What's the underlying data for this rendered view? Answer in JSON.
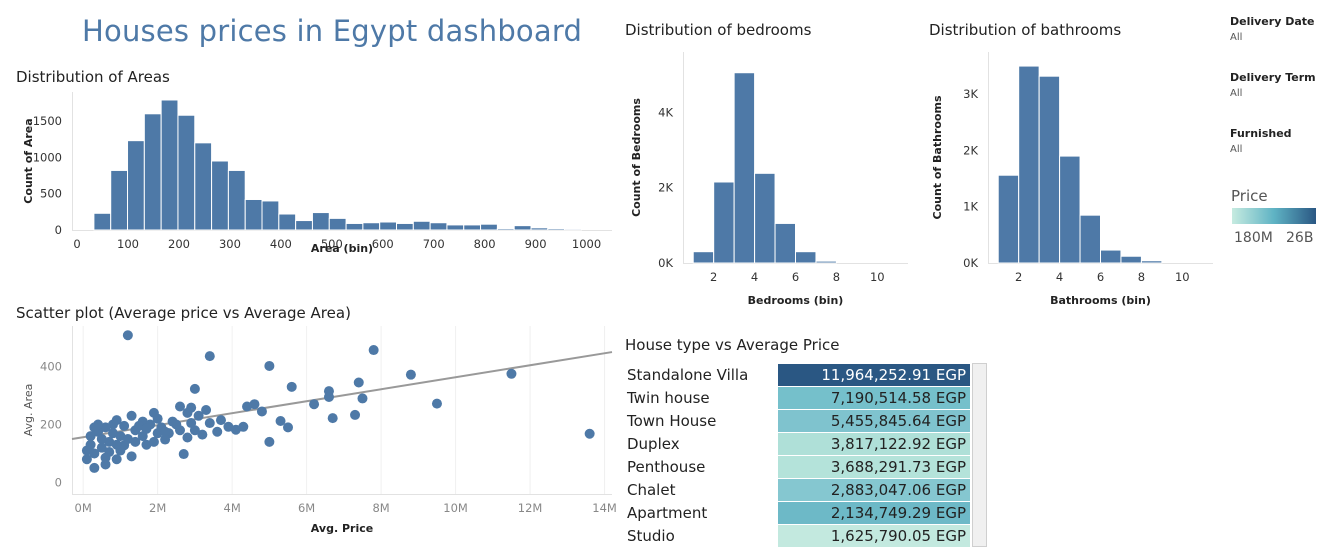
{
  "dashboard": {
    "title": "Houses prices in Egypt dashboard"
  },
  "filters": [
    {
      "label": "Delivery Date",
      "value": "All"
    },
    {
      "label": "Delivery Term",
      "value": "All"
    },
    {
      "label": "Furnished",
      "value": "All"
    }
  ],
  "legend": {
    "title": "Price",
    "min_label": "180M",
    "max_label": "26B",
    "color_low": "#c6ebe0",
    "color_high": "#2a5783"
  },
  "colors": {
    "bar": "#4e79a7",
    "point": "#4e79a7",
    "trend": "#999999"
  },
  "chart_data": [
    {
      "id": "areas",
      "type": "bar",
      "title": "Distribution of Areas",
      "xlabel": "Area (bin)",
      "ylabel": "Count of Area",
      "bin_width": 33,
      "x": [
        33,
        66,
        99,
        132,
        165,
        198,
        231,
        264,
        297,
        330,
        363,
        396,
        429,
        462,
        495,
        528,
        561,
        594,
        627,
        660,
        693,
        726,
        759,
        792,
        825,
        858,
        891,
        924,
        957
      ],
      "values": [
        230,
        820,
        1230,
        1600,
        1790,
        1580,
        1200,
        950,
        820,
        420,
        400,
        220,
        130,
        240,
        160,
        90,
        100,
        110,
        90,
        120,
        100,
        70,
        70,
        80,
        20,
        60,
        30,
        20,
        15
      ],
      "xticks": [
        "0",
        "100",
        "200",
        "300",
        "400",
        "500",
        "600",
        "700",
        "800",
        "900",
        "1000"
      ],
      "xtick_values": [
        0,
        100,
        200,
        300,
        400,
        500,
        600,
        700,
        800,
        900,
        1000
      ],
      "yticks": [
        "0",
        "500",
        "1000",
        "1500"
      ],
      "ytick_values": [
        0,
        500,
        1000,
        1500
      ],
      "xlim": [
        -10,
        1050
      ],
      "ylim": [
        0,
        1900
      ]
    },
    {
      "id": "bedrooms",
      "type": "bar",
      "title": "Distribution of bedrooms",
      "xlabel": "Bedrooms (bin)",
      "ylabel": "Count of Bedrooms",
      "bin_width": 1,
      "x": [
        1,
        2,
        3,
        4,
        5,
        6,
        7
      ],
      "values": [
        300,
        2150,
        5050,
        2380,
        1050,
        300,
        50
      ],
      "xticks": [
        "2",
        "4",
        "6",
        "8",
        "10"
      ],
      "xtick_values": [
        2,
        4,
        6,
        8,
        10
      ],
      "yticks": [
        "0K",
        "2K",
        "4K"
      ],
      "ytick_values": [
        0,
        2000,
        4000
      ],
      "xlim": [
        0.5,
        11.5
      ],
      "ylim": [
        0,
        5600
      ]
    },
    {
      "id": "bathrooms",
      "type": "bar",
      "title": "Distribution of bathrooms",
      "xlabel": "Bathrooms (bin)",
      "ylabel": "Count of Bathrooms",
      "bin_width": 1,
      "x": [
        1,
        2,
        3,
        4,
        5,
        6,
        7,
        8
      ],
      "values": [
        1560,
        3500,
        3320,
        1900,
        850,
        230,
        120,
        40
      ],
      "xticks": [
        "2",
        "4",
        "6",
        "8",
        "10"
      ],
      "xtick_values": [
        2,
        4,
        6,
        8,
        10
      ],
      "yticks": [
        "0K",
        "1K",
        "2K",
        "3K"
      ],
      "ytick_values": [
        0,
        1000,
        2000,
        3000
      ],
      "xlim": [
        0.5,
        11.5
      ],
      "ylim": [
        0,
        3750
      ]
    },
    {
      "id": "scatter",
      "type": "scatter",
      "title": "Scatter plot (Average price vs Average Area)",
      "xlabel": "Avg. Price",
      "ylabel": "Avg. Area",
      "xticks": [
        "0M",
        "2M",
        "4M",
        "6M",
        "8M",
        "10M",
        "12M",
        "14M"
      ],
      "xtick_values": [
        0,
        2,
        4,
        6,
        8,
        10,
        12,
        14
      ],
      "yticks": [
        "0",
        "200",
        "400"
      ],
      "ytick_values": [
        0,
        200,
        400
      ],
      "xlim": [
        -0.3,
        14.2
      ],
      "ylim": [
        -40,
        540
      ],
      "trend": [
        [
          -0.3,
          150
        ],
        [
          14.2,
          450
        ]
      ],
      "points": [
        [
          1.2,
          508
        ],
        [
          3.4,
          436
        ],
        [
          7.8,
          457
        ],
        [
          5.0,
          402
        ],
        [
          8.8,
          372
        ],
        [
          11.5,
          375
        ],
        [
          13.6,
          168
        ],
        [
          5.6,
          330
        ],
        [
          7.4,
          345
        ],
        [
          6.6,
          315
        ],
        [
          3.0,
          323
        ],
        [
          9.5,
          272
        ],
        [
          7.5,
          290
        ],
        [
          6.2,
          270
        ],
        [
          6.6,
          295
        ],
        [
          4.6,
          270
        ],
        [
          4.4,
          262
        ],
        [
          6.7,
          222
        ],
        [
          7.3,
          233
        ],
        [
          4.8,
          245
        ],
        [
          5.3,
          212
        ],
        [
          5.5,
          190
        ],
        [
          5.0,
          140
        ],
        [
          3.3,
          250
        ],
        [
          3.1,
          230
        ],
        [
          2.8,
          240
        ],
        [
          2.6,
          262
        ],
        [
          2.9,
          258
        ],
        [
          3.4,
          205
        ],
        [
          3.9,
          192
        ],
        [
          4.3,
          192
        ],
        [
          4.1,
          182
        ],
        [
          3.2,
          165
        ],
        [
          2.6,
          180
        ],
        [
          2.3,
          170
        ],
        [
          2.8,
          155
        ],
        [
          2.0,
          170
        ],
        [
          2.0,
          220
        ],
        [
          1.9,
          240
        ],
        [
          1.6,
          210
        ],
        [
          1.3,
          230
        ],
        [
          1.4,
          180
        ],
        [
          2.7,
          98
        ],
        [
          2.2,
          148
        ],
        [
          1.0,
          160
        ],
        [
          0.8,
          200
        ],
        [
          0.6,
          190
        ],
        [
          0.4,
          175
        ],
        [
          0.2,
          160
        ],
        [
          0.7,
          140
        ],
        [
          1.1,
          128
        ],
        [
          0.5,
          120
        ],
        [
          0.3,
          100
        ],
        [
          0.1,
          80
        ],
        [
          0.6,
          62
        ],
        [
          0.3,
          50
        ],
        [
          0.9,
          80
        ],
        [
          1.5,
          195
        ],
        [
          1.8,
          200
        ],
        [
          1.2,
          150
        ],
        [
          1.7,
          130
        ],
        [
          0.4,
          200
        ],
        [
          0.9,
          215
        ],
        [
          2.4,
          210
        ],
        [
          3.6,
          175
        ],
        [
          2.1,
          190
        ],
        [
          1.0,
          110
        ],
        [
          0.2,
          130
        ],
        [
          0.8,
          170
        ],
        [
          1.3,
          90
        ],
        [
          0.5,
          150
        ],
        [
          1.6,
          160
        ],
        [
          2.5,
          200
        ],
        [
          3.0,
          180
        ],
        [
          1.9,
          140
        ],
        [
          0.7,
          105
        ],
        [
          0.1,
          110
        ],
        [
          1.4,
          140
        ],
        [
          2.2,
          175
        ],
        [
          0.6,
          85
        ],
        [
          1.1,
          195
        ],
        [
          3.7,
          215
        ],
        [
          2.9,
          205
        ],
        [
          0.9,
          130
        ],
        [
          0.3,
          190
        ],
        [
          1.7,
          185
        ]
      ]
    }
  ],
  "table": {
    "title": "House type vs Average Price",
    "rows": [
      {
        "type": "Standalone Villa",
        "price": "11,964,252.91 EGP",
        "color": "#2a5783",
        "text_color": "#ffffff"
      },
      {
        "type": "Twin house",
        "price": "7,190,514.58 EGP",
        "color": "#75c0cb",
        "text_color": "#222222"
      },
      {
        "type": "Town House",
        "price": "5,455,845.64 EGP",
        "color": "#7fc3ce",
        "text_color": "#222222"
      },
      {
        "type": "Duplex",
        "price": "3,817,122.92 EGP",
        "color": "#afe0d8",
        "text_color": "#222222"
      },
      {
        "type": "Penthouse",
        "price": "3,688,291.73 EGP",
        "color": "#b4e3da",
        "text_color": "#222222"
      },
      {
        "type": "Chalet",
        "price": "2,883,047.06 EGP",
        "color": "#85c7d0",
        "text_color": "#222222"
      },
      {
        "type": "Apartment",
        "price": "2,134,749.29 EGP",
        "color": "#6db9c7",
        "text_color": "#222222"
      },
      {
        "type": "Studio",
        "price": "1,625,790.05 EGP",
        "color": "#c3e9df",
        "text_color": "#222222"
      }
    ]
  }
}
